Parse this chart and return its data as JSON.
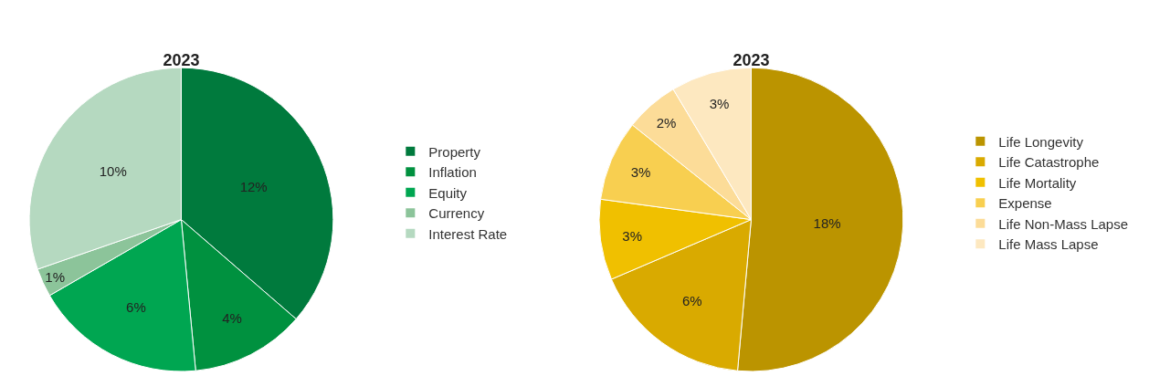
{
  "chart_data": [
    {
      "type": "pie",
      "title": "2023",
      "categories": [
        "Property",
        "Inflation",
        "Equity",
        "Currency",
        "Interest Rate"
      ],
      "values": [
        12,
        4,
        6,
        1,
        10
      ],
      "value_labels": [
        "12%",
        "4%",
        "6%",
        "1%",
        "10%"
      ],
      "colors": [
        "#007a3d",
        "#00913f",
        "#00a651",
        "#8cc49a",
        "#b5d9c0"
      ],
      "legend": "right"
    },
    {
      "type": "pie",
      "title": "2023",
      "categories": [
        "Life Longevity",
        "Life Catastrophe",
        "Life Mortality",
        "Expense",
        "Life Non-Mass Lapse",
        "Life Mass Lapse"
      ],
      "values": [
        18,
        6,
        3,
        3,
        2,
        3
      ],
      "value_labels": [
        "18%",
        "6%",
        "3%",
        "3%",
        "2%",
        "3%"
      ],
      "colors": [
        "#bb9400",
        "#d9aa00",
        "#f0c000",
        "#f8cf50",
        "#fcdc98",
        "#fde8c0"
      ],
      "legend": "right"
    }
  ]
}
